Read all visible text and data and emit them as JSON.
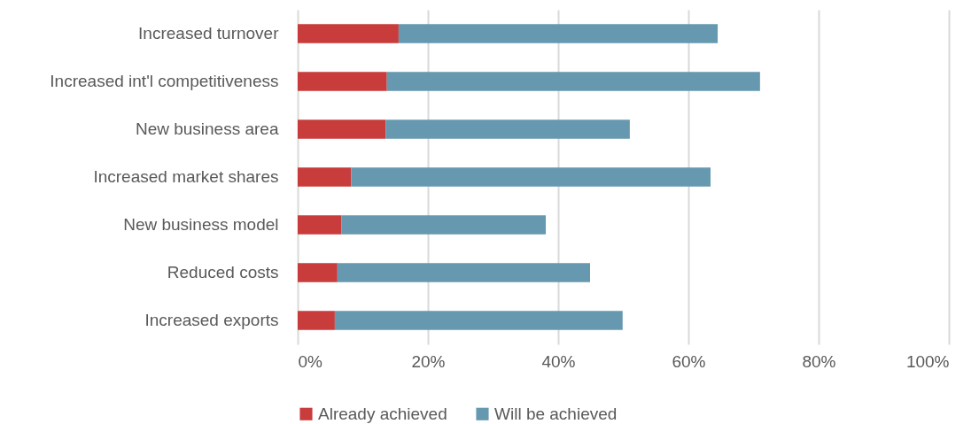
{
  "chart_data": {
    "type": "bar",
    "orientation": "horizontal",
    "stacked": true,
    "categories": [
      "Increased turnover",
      "Increased int'l competitiveness",
      "New business area",
      "Increased market shares",
      "New business model",
      "Reduced costs",
      "Increased exports"
    ],
    "series": [
      {
        "name": "Already achieved",
        "color": "#c83c3c",
        "values": [
          15.5,
          13.7,
          13.5,
          8.2,
          6.7,
          6.1,
          5.7
        ]
      },
      {
        "name": "Will be achieved",
        "color": "#6699b0",
        "values": [
          49,
          57.3,
          37.5,
          55.2,
          31.4,
          38.8,
          44.2
        ]
      }
    ],
    "xlim": [
      0,
      100
    ],
    "xticks": [
      {
        "value": 0,
        "label": "0%"
      },
      {
        "value": 20,
        "label": "20%"
      },
      {
        "value": 40,
        "label": "40%"
      },
      {
        "value": 60,
        "label": "60%"
      },
      {
        "value": 80,
        "label": "80%"
      },
      {
        "value": 100,
        "label": "100%"
      }
    ],
    "grid": "x",
    "legend": "bottom"
  }
}
